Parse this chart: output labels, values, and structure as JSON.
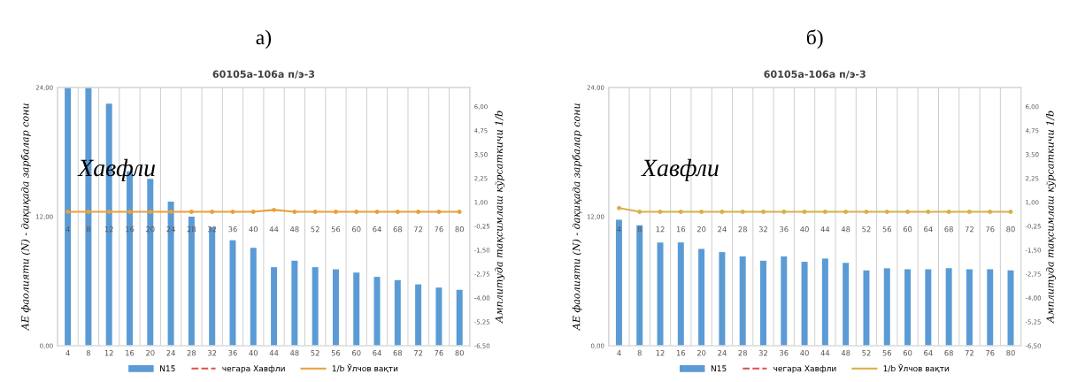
{
  "chart_data": [
    {
      "type": "bar",
      "title": "60105а-106а п/э-3",
      "ylabel": "АЕ фаолияти (N) - дақиқада зарбалар сони",
      "y2label": "Амплитуда тақсимлаш кўрсаткичи 1/b",
      "annotations": [
        "а)",
        "Хавфли"
      ],
      "categories": [
        "4",
        "8",
        "12",
        "16",
        "20",
        "24",
        "28",
        "32",
        "36",
        "40",
        "44",
        "48",
        "52",
        "56",
        "60",
        "64",
        "68",
        "72",
        "76",
        "80"
      ],
      "series": [
        {
          "name": "N15",
          "color": "#5b9bd5",
          "values": [
            24,
            24,
            22.5,
            16.2,
            15.5,
            13.4,
            12.0,
            11.0,
            9.8,
            9.1,
            7.3,
            7.9,
            7.3,
            7.1,
            6.8,
            6.4,
            6.1,
            5.7,
            5.4,
            5.2
          ]
        },
        {
          "name": "чегара Хавфли",
          "type": "line",
          "axis": "y2",
          "color": "#e0504a",
          "line_style": "dashed",
          "values": [
            null,
            null,
            null,
            null,
            null,
            null,
            null,
            null,
            null,
            null,
            null,
            null,
            null,
            null,
            null,
            null,
            null,
            null,
            null,
            null
          ]
        },
        {
          "name": "1/b Ўлчов вақти",
          "type": "line",
          "axis": "y2",
          "color": "#e8a03c",
          "line_style": "solid",
          "marker": "circle",
          "values": [
            0.5,
            0.5,
            0.5,
            0.5,
            0.5,
            0.5,
            0.5,
            0.5,
            0.5,
            0.5,
            0.6,
            0.5,
            0.5,
            0.5,
            0.5,
            0.5,
            0.5,
            0.5,
            0.5,
            0.5
          ]
        }
      ],
      "ylim": [
        0,
        24
      ],
      "yticks": [
        {
          "value": 0,
          "label": "0,00"
        },
        {
          "value": 12,
          "label": "12,00"
        },
        {
          "value": 24,
          "label": "24,00"
        }
      ],
      "y2lim": [
        -6.5,
        7.0
      ],
      "y2ticks": [
        {
          "value": -6.5,
          "label": "-6,50"
        },
        {
          "value": -5.25,
          "label": "-5,25"
        },
        {
          "value": -4.0,
          "label": "-4,00"
        },
        {
          "value": -2.75,
          "label": "-2,75"
        },
        {
          "value": -1.5,
          "label": "-1,50"
        },
        {
          "value": -0.25,
          "label": "-0,25"
        },
        {
          "value": 1.0,
          "label": "1,00"
        },
        {
          "value": 2.25,
          "label": "2,25"
        },
        {
          "value": 3.5,
          "label": "3,50"
        },
        {
          "value": 4.75,
          "label": "4,75"
        },
        {
          "value": 6.0,
          "label": "6,00"
        }
      ],
      "grid": "x",
      "legend": "bottom"
    },
    {
      "type": "bar",
      "title": "60105а-106а п/э-3",
      "ylabel": "АЕ фаолияти (N) - дақиқада зарбалар сони",
      "y2label": "Амплитуда тақсимлаш кўрсаткичи 1/b",
      "annotations": [
        "б)",
        "Хавфли"
      ],
      "categories": [
        "4",
        "8",
        "12",
        "16",
        "20",
        "24",
        "28",
        "32",
        "36",
        "40",
        "44",
        "48",
        "52",
        "56",
        "60",
        "64",
        "68",
        "72",
        "76",
        "80"
      ],
      "series": [
        {
          "name": "N15",
          "color": "#5b9bd5",
          "values": [
            11.7,
            11.2,
            9.6,
            9.6,
            9.0,
            8.7,
            8.3,
            7.9,
            8.3,
            7.8,
            8.1,
            7.7,
            7.0,
            7.2,
            7.1,
            7.1,
            7.2,
            7.1,
            7.1,
            7.0
          ]
        },
        {
          "name": "чегара Хавфли",
          "type": "line",
          "axis": "y2",
          "color": "#e0504a",
          "line_style": "dashed",
          "values": [
            null,
            null,
            null,
            null,
            null,
            null,
            null,
            null,
            null,
            null,
            null,
            null,
            null,
            null,
            null,
            null,
            null,
            null,
            null,
            null
          ]
        },
        {
          "name": "1/b Ўлчов вақти",
          "type": "line",
          "axis": "y2",
          "color": "#d8b04a",
          "line_style": "solid",
          "marker": "circle",
          "values": [
            0.7,
            0.5,
            0.5,
            0.5,
            0.5,
            0.5,
            0.5,
            0.5,
            0.5,
            0.5,
            0.5,
            0.5,
            0.5,
            0.5,
            0.5,
            0.5,
            0.5,
            0.5,
            0.5,
            0.5
          ]
        }
      ],
      "ylim": [
        0,
        24
      ],
      "yticks": [
        {
          "value": 0,
          "label": "0,00"
        },
        {
          "value": 12,
          "label": "12,00"
        },
        {
          "value": 24,
          "label": "24,00"
        }
      ],
      "y2lim": [
        -6.5,
        7.0
      ],
      "y2ticks": [
        {
          "value": -6.5,
          "label": "-6,50"
        },
        {
          "value": -5.25,
          "label": "-5,25"
        },
        {
          "value": -4.0,
          "label": "-4,00"
        },
        {
          "value": -2.75,
          "label": "-2,75"
        },
        {
          "value": -1.5,
          "label": "-1,50"
        },
        {
          "value": -0.25,
          "label": "-0,25"
        },
        {
          "value": 1.0,
          "label": "1,00"
        },
        {
          "value": 2.25,
          "label": "2,25"
        },
        {
          "value": 3.5,
          "label": "3,50"
        },
        {
          "value": 4.75,
          "label": "4,75"
        },
        {
          "value": 6.0,
          "label": "6,00"
        }
      ],
      "grid": "x",
      "legend": "bottom"
    }
  ]
}
